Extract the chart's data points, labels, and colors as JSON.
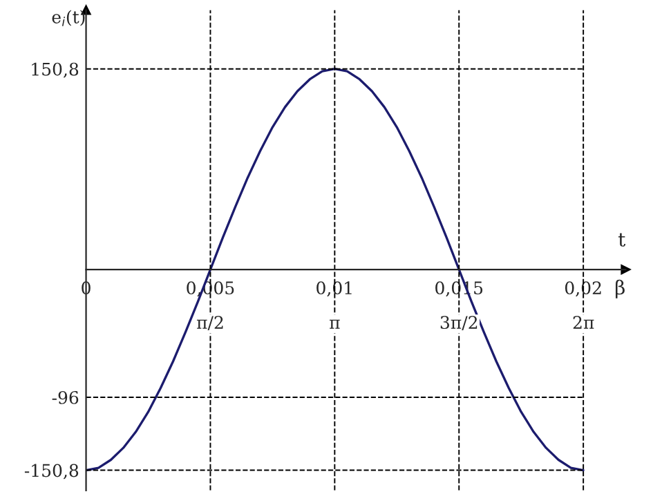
{
  "chart_data": {
    "type": "line",
    "xlabel": "t",
    "x2label": "β",
    "ylabel": "e$_{i}$(t)",
    "x": [
      0,
      0.0005,
      0.001,
      0.0015,
      0.002,
      0.0025,
      0.003,
      0.0035,
      0.004,
      0.0045,
      0.005,
      0.0055,
      0.006,
      0.0065,
      0.007,
      0.0075,
      0.008,
      0.0085,
      0.009,
      0.0095,
      0.01,
      0.0105,
      0.011,
      0.0115,
      0.012,
      0.0125,
      0.013,
      0.0135,
      0.014,
      0.0145,
      0.015,
      0.0155,
      0.016,
      0.0165,
      0.017,
      0.0175,
      0.018,
      0.0185,
      0.019,
      0.0195,
      0.02
    ],
    "series": [
      {
        "color": "#1c1c6e",
        "values": [
          -150.8,
          -149,
          -143,
          -134,
          -122,
          -107,
          -89,
          -69,
          -47,
          -24,
          0,
          24,
          47,
          69,
          89,
          107,
          122,
          134,
          143,
          149,
          150.8,
          149,
          143,
          134,
          122,
          107,
          89,
          69,
          47,
          24,
          0,
          -24,
          -47,
          -69,
          -89,
          -107,
          -122,
          -134,
          -143,
          -149,
          -150.8
        ]
      }
    ],
    "xlim": [
      0,
      0.0217
    ],
    "ylim": [
      -166,
      195
    ],
    "xticks": [
      {
        "value": 0,
        "label": "0"
      },
      {
        "value": 0.005,
        "label": "0,005"
      },
      {
        "value": 0.01,
        "label": "0,01"
      },
      {
        "value": 0.015,
        "label": "0,015"
      },
      {
        "value": 0.02,
        "label": "0,02"
      }
    ],
    "x2lim": [
      0,
      6.817
    ],
    "x2ticks": [
      {
        "value": 1.5708,
        "label": "π/2"
      },
      {
        "value": 3.1416,
        "label": "π"
      },
      {
        "value": 4.7124,
        "label": "3π/2"
      },
      {
        "value": 6.2832,
        "label": "2π"
      }
    ],
    "yticks": [
      {
        "value": 150.8,
        "label": "150,8"
      },
      {
        "value": -96,
        "label": "-96"
      },
      {
        "value": -150.8,
        "label": "-150,8"
      }
    ],
    "ref_lines": [
      {
        "axis": "y",
        "value": 150.8,
        "line_style": "dashed",
        "color": "#000000"
      },
      {
        "axis": "y",
        "value": -96,
        "line_style": "dashed",
        "color": "#000000"
      },
      {
        "axis": "y",
        "value": -150.8,
        "line_style": "dashed",
        "color": "#000000"
      },
      {
        "axis": "x",
        "value": 0.005,
        "line_style": "dashed",
        "color": "#000000"
      },
      {
        "axis": "x",
        "value": 0.01,
        "line_style": "dashed",
        "color": "#000000"
      },
      {
        "axis": "x",
        "value": 0.015,
        "line_style": "dashed",
        "color": "#000000"
      },
      {
        "axis": "x",
        "value": 0.02,
        "line_style": "dashed",
        "color": "#000000"
      }
    ],
    "line_style": "solid",
    "marker": "none",
    "grid": false
  }
}
